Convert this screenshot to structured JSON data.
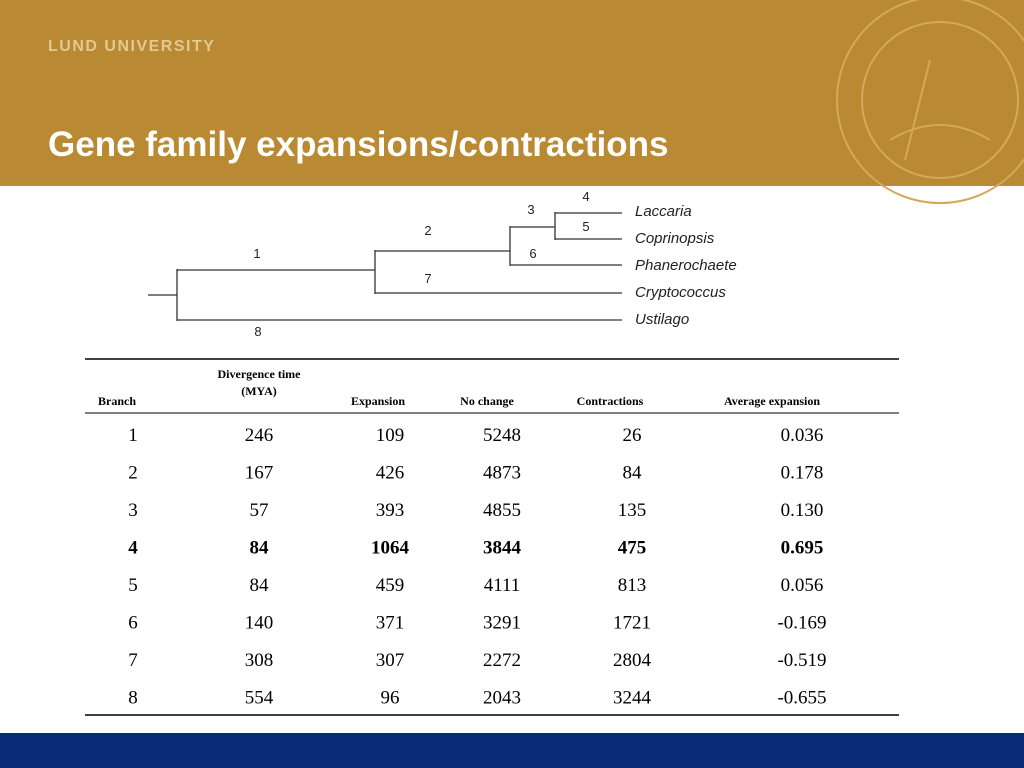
{
  "header": {
    "org": "LUND UNIVERSITY",
    "title": "Gene family expansions/contractions"
  },
  "tree": {
    "branches": [
      "1",
      "2",
      "3",
      "4",
      "5",
      "6",
      "7",
      "8"
    ],
    "taxa": [
      "Laccaria",
      "Coprinopsis",
      "Phanerochaete",
      "Cryptococcus",
      "Ustilago"
    ]
  },
  "table": {
    "headers": [
      "Branch",
      [
        "Divergence time",
        "(MYA)"
      ],
      "Expansion",
      "No change",
      "Contractions",
      "Average expansion"
    ],
    "rows": [
      {
        "cells": [
          "1",
          "246",
          "109",
          "5248",
          "26",
          "0.036"
        ],
        "bold": false
      },
      {
        "cells": [
          "2",
          "167",
          "426",
          "4873",
          "84",
          "0.178"
        ],
        "bold": false
      },
      {
        "cells": [
          "3",
          "57",
          "393",
          "4855",
          "135",
          "0.130"
        ],
        "bold": false
      },
      {
        "cells": [
          "4",
          "84",
          "1064",
          "3844",
          "475",
          "0.695"
        ],
        "bold": true
      },
      {
        "cells": [
          "5",
          "84",
          "459",
          "4111",
          "813",
          "0.056"
        ],
        "bold": false
      },
      {
        "cells": [
          "6",
          "140",
          "371",
          "3291",
          "1721",
          "-0.169"
        ],
        "bold": false
      },
      {
        "cells": [
          "7",
          "308",
          "307",
          "2272",
          "2804",
          "-0.519"
        ],
        "bold": false
      },
      {
        "cells": [
          "8",
          "554",
          "96",
          "2043",
          "3244",
          "-0.655"
        ],
        "bold": false
      }
    ]
  }
}
